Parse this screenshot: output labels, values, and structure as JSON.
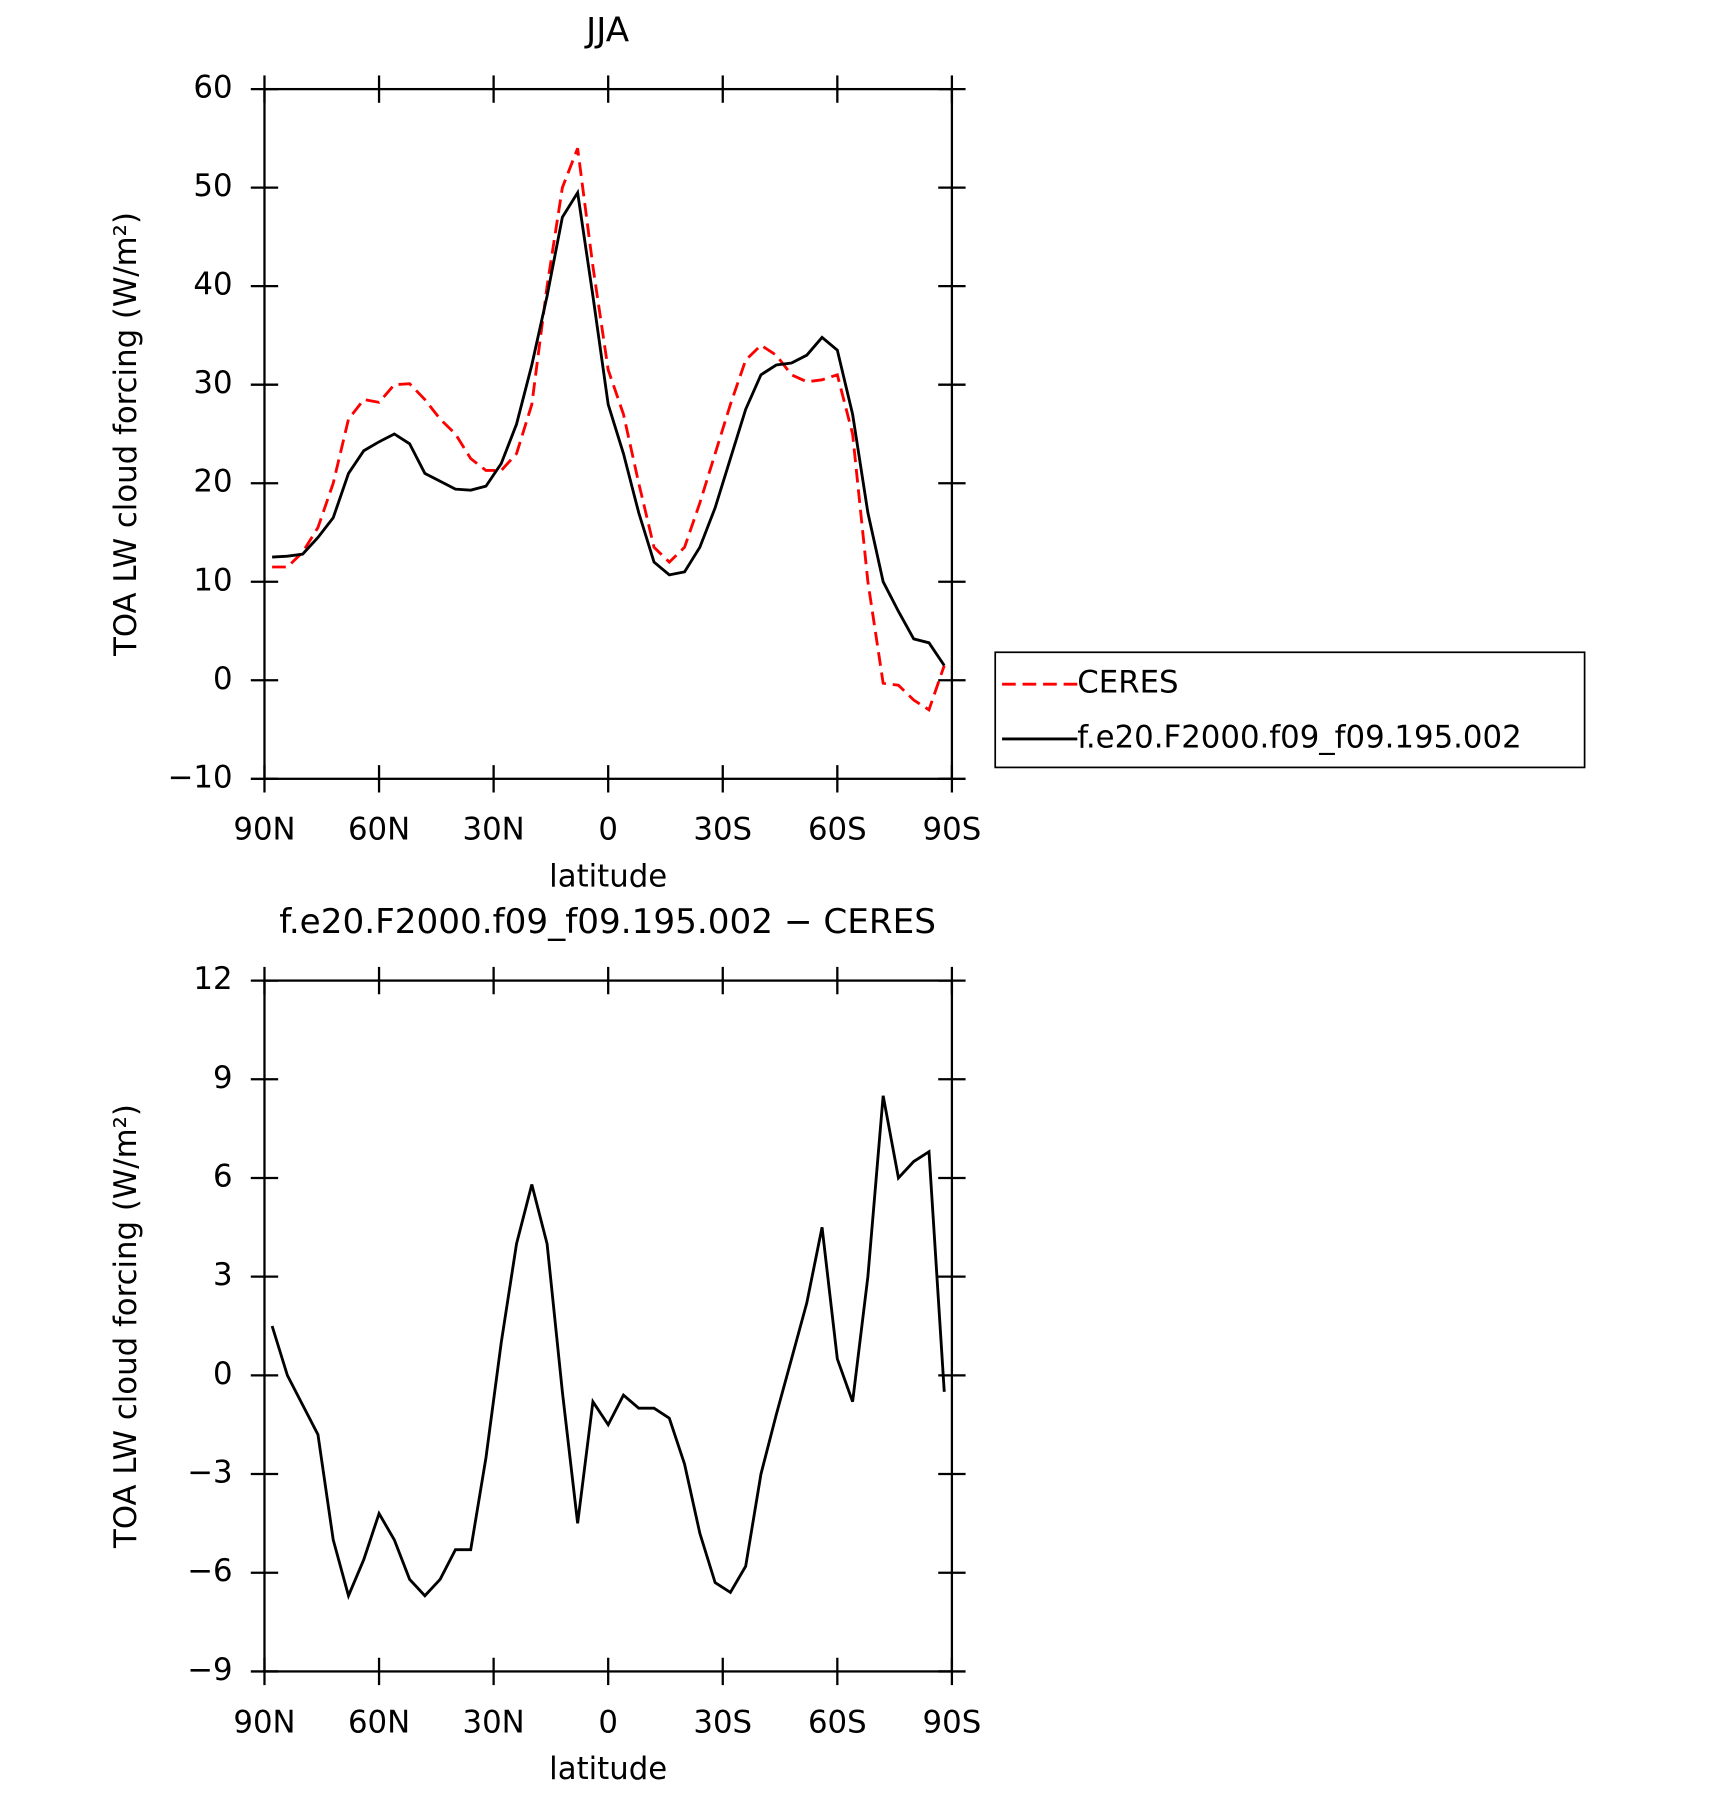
{
  "chart_data": [
    {
      "type": "line",
      "title": "JJA",
      "xlabel": "latitude",
      "ylabel": "TOA LW cloud forcing (W/m²)",
      "x": [
        88,
        84,
        80,
        76,
        72,
        68,
        64,
        60,
        56,
        52,
        48,
        44,
        40,
        36,
        32,
        28,
        24,
        20,
        16,
        12,
        8,
        4,
        0,
        -4,
        -8,
        -12,
        -16,
        -20,
        -24,
        -28,
        -32,
        -36,
        -40,
        -44,
        -48,
        -52,
        -56,
        -60,
        -64,
        -68,
        -72,
        -76,
        -80,
        -84,
        -88
      ],
      "xlim": [
        90,
        -90
      ],
      "xticks": [
        {
          "value": 90,
          "label": "90N"
        },
        {
          "value": 60,
          "label": "60N"
        },
        {
          "value": 30,
          "label": "30N"
        },
        0,
        {
          "value": -30,
          "label": "30S"
        },
        {
          "value": -60,
          "label": "60S"
        },
        {
          "value": -90,
          "label": "90S"
        }
      ],
      "ylim": [
        -10,
        60
      ],
      "yticks": [
        {
          "value": -10,
          "label": "−10"
        },
        0,
        10,
        20,
        30,
        40,
        50,
        60
      ],
      "legend": "right",
      "series": [
        {
          "name": "CERES",
          "color": "#ff0000",
          "dash": true,
          "values": [
            11.5,
            11.5,
            13,
            15.5,
            20,
            26.5,
            28.5,
            28.2,
            30,
            30.1,
            28.5,
            26.5,
            25,
            22.5,
            21.3,
            21.3,
            23,
            28,
            40,
            50,
            54,
            42,
            31.5,
            27,
            20,
            13.5,
            12,
            13.5,
            18,
            23,
            28,
            32.5,
            34,
            33,
            31,
            30.3,
            30.5,
            31,
            25,
            10,
            -0.3,
            -0.5,
            -2,
            -3,
            1.5
          ]
        },
        {
          "name": "f.e20.F2000.f09_f09.195.002",
          "color": "#000000",
          "dash": false,
          "values": [
            12.5,
            12.6,
            12.8,
            14.5,
            16.5,
            21,
            23.3,
            24.2,
            25,
            24,
            21,
            20.2,
            19.4,
            19.3,
            19.7,
            22,
            26,
            32,
            39,
            47,
            49.5,
            39,
            28,
            23,
            17,
            12,
            10.7,
            11,
            13.5,
            17.5,
            22.5,
            27.5,
            31,
            32,
            32.2,
            33,
            34.8,
            33.5,
            27,
            17,
            10,
            7,
            4.2,
            3.8,
            1.5
          ]
        }
      ]
    },
    {
      "type": "line",
      "title": "f.e20.F2000.f09_f09.195.002 − CERES",
      "xlabel": "latitude",
      "ylabel": "TOA LW cloud forcing (W/m²)",
      "x": [
        88,
        84,
        80,
        76,
        72,
        68,
        64,
        60,
        56,
        52,
        48,
        44,
        40,
        36,
        32,
        28,
        24,
        20,
        16,
        12,
        8,
        4,
        0,
        -4,
        -8,
        -12,
        -16,
        -20,
        -24,
        -28,
        -32,
        -36,
        -40,
        -44,
        -48,
        -52,
        -56,
        -60,
        -64,
        -68,
        -72,
        -76,
        -80,
        -84,
        -88
      ],
      "xlim": [
        90,
        -90
      ],
      "xticks": [
        {
          "value": 90,
          "label": "90N"
        },
        {
          "value": 60,
          "label": "60N"
        },
        {
          "value": 30,
          "label": "30N"
        },
        0,
        {
          "value": -30,
          "label": "30S"
        },
        {
          "value": -60,
          "label": "60S"
        },
        {
          "value": -90,
          "label": "90S"
        }
      ],
      "ylim": [
        -9,
        12
      ],
      "yticks": [
        {
          "value": -9,
          "label": "−9"
        },
        {
          "value": -6,
          "label": "−6"
        },
        {
          "value": -3,
          "label": "−3"
        },
        0,
        3,
        6,
        9,
        12
      ],
      "series": [
        {
          "color": "#000000",
          "dash": false,
          "values": [
            1.5,
            0,
            -0.9,
            -1.8,
            -5,
            -6.7,
            -5.6,
            -4.2,
            -5,
            -6.2,
            -6.7,
            -6.2,
            -5.3,
            -5.3,
            -2.5,
            1,
            4,
            5.8,
            4,
            -0.5,
            -4.5,
            -0.8,
            -1.5,
            -0.6,
            -1,
            -1,
            -1.3,
            -2.7,
            -4.8,
            -6.3,
            -6.6,
            -5.8,
            -3,
            -1.2,
            0.5,
            2.2,
            4.5,
            0.5,
            -0.8,
            3,
            8.5,
            6,
            6.5,
            6.8,
            -0.5
          ]
        }
      ]
    }
  ]
}
